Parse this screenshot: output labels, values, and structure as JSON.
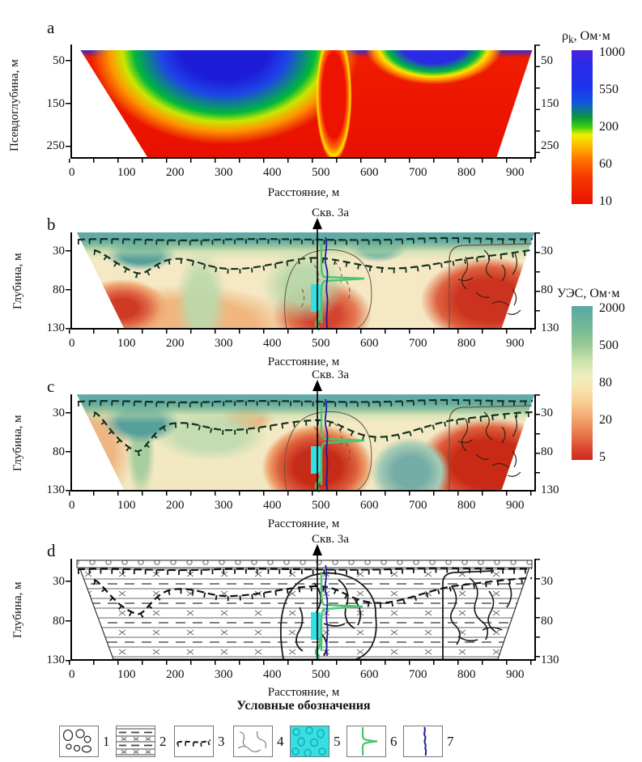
{
  "figure": {
    "x_ticks": [
      "0",
      "100",
      "200",
      "300",
      "400",
      "500",
      "600",
      "700",
      "800",
      "900"
    ],
    "xlabel": "Расстояние, м",
    "borehole_label": "Скв. 3а",
    "panels": [
      {
        "letter": "a",
        "ylabel": "Псевдоглубина, м",
        "y_ticks": [
          "50",
          "150",
          "250"
        ]
      },
      {
        "letter": "b",
        "ylabel": "Глубина, м",
        "y_ticks": [
          "30",
          "80",
          "130"
        ]
      },
      {
        "letter": "c",
        "ylabel": "Глубина, м",
        "y_ticks": [
          "30",
          "80",
          "130"
        ]
      },
      {
        "letter": "d",
        "ylabel": "Глубина, м",
        "y_ticks": [
          "30",
          "80",
          "130"
        ]
      }
    ],
    "colorbar_a": {
      "title_sym": "ρ",
      "title_sub": "k",
      "title_unit": ", Ом·м",
      "ticks": [
        "1000",
        "550",
        "200",
        "60",
        "10"
      ]
    },
    "colorbar_bc": {
      "title": "УЭС, Ом·м",
      "ticks": [
        "2000",
        "500",
        "80",
        "20",
        "5"
      ]
    },
    "legend": {
      "title": "Условные обозначения",
      "numbers": [
        "1",
        "2",
        "3",
        "4",
        "5",
        "6",
        "7"
      ],
      "symbols": [
        "pebbles-boulders",
        "layered-strata-pattern",
        "hachured-boundary-line",
        "fracture-lines",
        "karst-cavity-cyan-fill",
        "green-log-curve-with-spike",
        "blue-wavy-log-curve"
      ]
    },
    "colors": {
      "cyan_fill": "#35dfe2",
      "green_log": "#4cc273",
      "blue_log": "#1c1c9e",
      "hachure": "#14301c"
    }
  },
  "chart_data": [
    {
      "type": "heatmap",
      "panel": "a",
      "kind": "apparent resistivity pseudo-section",
      "xlabel": "Расстояние, м",
      "ylabel": "Псевдоглубина, м",
      "x_ticks": [
        0,
        100,
        200,
        300,
        400,
        500,
        600,
        700,
        800,
        900
      ],
      "x_range": [
        0,
        950
      ],
      "y_ticks": [
        50,
        150,
        250
      ],
      "y_range": [
        0,
        280
      ],
      "grid": false,
      "colorbar": {
        "title": "ρk, Ом·м",
        "ticks": [
          1000,
          550,
          200,
          60,
          10
        ],
        "orientation": "vertical",
        "top": "blue (1000)",
        "bottom": "red (10)"
      },
      "features": [
        "high-resistivity blue zone (550–1000 Ом·м) between ~50–600 м distance, from surface down to ~150 м pseudo-depth",
        "second blue shallow zone ~620–820 м",
        "narrow red low-resistivity column near 510–560 м reaching the surface",
        "low-resistivity red field (10–60 Ом·м) below ~150 м and on both flanks",
        "green/yellow transition rings between blue and red zones"
      ]
    },
    {
      "type": "heatmap",
      "panel": "b",
      "kind": "inverted resistivity depth section (model 1)",
      "xlabel": "Расстояние, м",
      "ylabel": "Глубина, м",
      "x_ticks": [
        0,
        100,
        200,
        300,
        400,
        500,
        600,
        700,
        800,
        900
      ],
      "y_ticks": [
        30,
        80,
        130
      ],
      "y_range": [
        0,
        130
      ],
      "colorbar": {
        "title": "УЭС, Ом·м",
        "ticks": [
          2000,
          500,
          80,
          20,
          5
        ],
        "orientation": "vertical",
        "top": "teal (2000)",
        "bottom": "red (5)"
      },
      "annotations": [
        "borehole Скв. 3а at ~510 м with arrow marker",
        "upper hachured dashed boundary along surface",
        "lower wavy hachured boundary dipping to ~45 м near 170 м",
        "outlined fractured zone ~390–580 м below ~25 м depth",
        "outlined fractured block ~770–950 м",
        "cyan karst interval on borehole at ~75–100 м depth",
        "green log curve with rightward spike at ~55 м depth",
        "blue wavy log curve along borehole"
      ],
      "features": [
        "teal high-resistivity cap layer (500–2000 Ом·м) ~0–20 м",
        "red conductive blobs (5–20 Ом·м) at ~100 м, ~450–560 м and ~800–950 м distance",
        "green moderate zone ~230–300 м, cream background ~80 Ом·м"
      ]
    },
    {
      "type": "heatmap",
      "panel": "c",
      "kind": "inverted resistivity depth section (model 2)",
      "xlabel": "Расстояние, м",
      "ylabel": "Глубина, м",
      "x_ticks": [
        0,
        100,
        200,
        300,
        400,
        500,
        600,
        700,
        800,
        900
      ],
      "y_ticks": [
        30,
        80,
        130
      ],
      "y_range": [
        0,
        130
      ],
      "colorbar": {
        "title": "УЭС, Ом·м",
        "ticks": [
          2000,
          500,
          80,
          20,
          5
        ]
      },
      "annotations": [
        "borehole Скв. 3а at ~510 м",
        "same hachured boundaries, fractured-zone outlines, cyan karst interval and log curves as panel b"
      ],
      "features": [
        "teal cap layer thicker, dipping to ~45 м near 170 м",
        "strong red conductive body ~430–580 м (around borehole) and ~770–950 м",
        "deep teal resistive blob ~620–760 м at 60–130 м depth",
        "green shallow field on left half"
      ]
    },
    {
      "type": "diagram",
      "panel": "d",
      "kind": "geological interpretation section",
      "xlabel": "Расстояние, м",
      "ylabel": "Глубина, м",
      "x_ticks": [
        0,
        100,
        200,
        300,
        400,
        500,
        600,
        700,
        800,
        900
      ],
      "y_ticks": [
        30,
        80,
        130
      ],
      "annotations": [
        "borehole Скв. 3а at ~510 м",
        "pebble layer band at the very top",
        "layered strata pattern (solid lines, dashes, X symbols)",
        "hachured boundary lines as in b/c",
        "large outlined karst/fractured body ~390–580 м",
        "fractured block right of vertical boundary at ~770 м",
        "cyan karst interval at ~75–100 м on borehole, green and blue log curves"
      ],
      "legend": {
        "title": "Условные обозначения",
        "numbers": [
          1,
          2,
          3,
          4,
          5,
          6,
          7
        ]
      }
    }
  ]
}
